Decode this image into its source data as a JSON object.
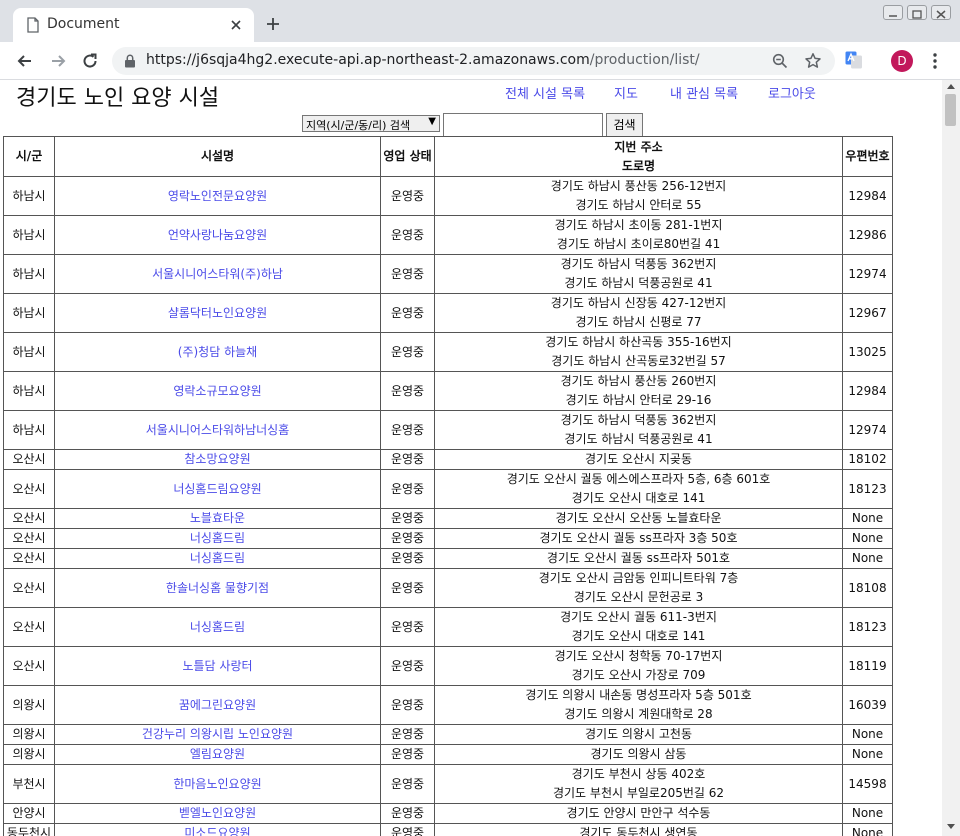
{
  "browser": {
    "tab_title": "Document",
    "url_main": "https://j6sqja4hg2.execute-api.ap-northeast-2.amazonaws.com",
    "url_path": "/production/list/",
    "profile_initial": "D",
    "profile_color": "#c2185b"
  },
  "page": {
    "title": "경기도 노인 요양 시설",
    "nav": [
      "전체 시설 목록",
      "지도",
      "내 관심 목록",
      "로그아웃"
    ],
    "search": {
      "select_value": "지역(시/군/동/리) 검색",
      "button_label": "검색",
      "input_value": ""
    },
    "link_color": "#4a4ae8"
  },
  "table": {
    "headers": [
      "시/군",
      "시설명",
      "영업 상태",
      "지번 주소",
      "도로명",
      "우편번호"
    ],
    "rows": [
      {
        "city": "하남시",
        "name": "영락노인전문요양원",
        "status": "운영중",
        "addr1": "경기도 하남시 풍산동 256-12번지",
        "addr2": "경기도 하남시 안터로 55",
        "zip": "12984"
      },
      {
        "city": "하남시",
        "name": "언약사랑나눔요양원",
        "status": "운영중",
        "addr1": "경기도 하남시 초이동 281-1번지",
        "addr2": "경기도 하남시 초이로80번길 41",
        "zip": "12986"
      },
      {
        "city": "하남시",
        "name": "서울시니어스타워(주)하남",
        "status": "운영중",
        "addr1": "경기도 하남시 덕풍동 362번지",
        "addr2": "경기도 하남시 덕풍공원로 41",
        "zip": "12974"
      },
      {
        "city": "하남시",
        "name": "샬롬닥터노인요양원",
        "status": "운영중",
        "addr1": "경기도 하남시 신장동 427-12번지",
        "addr2": "경기도 하남시 신평로 77",
        "zip": "12967"
      },
      {
        "city": "하남시",
        "name": "(주)청담 하늘채",
        "status": "운영중",
        "addr1": "경기도 하남시 하산곡동 355-16번지",
        "addr2": "경기도 하남시 산곡동로32번길 57",
        "zip": "13025"
      },
      {
        "city": "하남시",
        "name": "영락소규모요양원",
        "status": "운영중",
        "addr1": "경기도 하남시 풍산동 260번지",
        "addr2": "경기도 하남시 안터로 29-16",
        "zip": "12984"
      },
      {
        "city": "하남시",
        "name": "서울시니어스타워하남너싱홈",
        "status": "운영중",
        "addr1": "경기도 하남시 덕풍동 362번지",
        "addr2": "경기도 하남시 덕풍공원로 41",
        "zip": "12974"
      },
      {
        "city": "오산시",
        "name": "참소망요양원",
        "status": "운영중",
        "addr1": "경기도 오산시 지곶동",
        "addr2": "",
        "zip": "18102"
      },
      {
        "city": "오산시",
        "name": "너싱홈드림요양원",
        "status": "운영중",
        "addr1": "경기도 오산시 궐동 에스에스프라자 5층, 6층 601호",
        "addr2": "경기도 오산시 대호로 141",
        "zip": "18123"
      },
      {
        "city": "오산시",
        "name": "노블효타운",
        "status": "운영중",
        "addr1": "경기도 오산시 오산동 노블효타운",
        "addr2": "",
        "zip": "None"
      },
      {
        "city": "오산시",
        "name": "너싱홈드림",
        "status": "운영중",
        "addr1": "경기도 오산시 궐동 ss프라자 3층 50호",
        "addr2": "",
        "zip": "None"
      },
      {
        "city": "오산시",
        "name": "너싱홈드림",
        "status": "운영중",
        "addr1": "경기도 오산시 궐동 ss프라자 501호",
        "addr2": "",
        "zip": "None"
      },
      {
        "city": "오산시",
        "name": "한솔너싱홈 물향기점",
        "status": "운영중",
        "addr1": "경기도 오산시 금암동 인피니트타워 7층",
        "addr2": "경기도 오산시 문헌공로 3",
        "zip": "18108"
      },
      {
        "city": "오산시",
        "name": "너싱홈드림",
        "status": "운영중",
        "addr1": "경기도 오산시 궐동 611-3번지",
        "addr2": "경기도 오산시 대호로 141",
        "zip": "18123"
      },
      {
        "city": "오산시",
        "name": "노틀담 사랑터",
        "status": "운영중",
        "addr1": "경기도 오산시 청학동 70-17번지",
        "addr2": "경기도 오산시 가장로 709",
        "zip": "18119"
      },
      {
        "city": "의왕시",
        "name": "꿈에그린요양원",
        "status": "운영중",
        "addr1": "경기도 의왕시 내손동 명성프라자 5층 501호",
        "addr2": "경기도 의왕시 계원대학로 28",
        "zip": "16039"
      },
      {
        "city": "의왕시",
        "name": "건강누리 의왕시립 노인요양원",
        "status": "운영중",
        "addr1": "경기도 의왕시 고천동",
        "addr2": "",
        "zip": "None"
      },
      {
        "city": "의왕시",
        "name": "엘림요양원",
        "status": "운영중",
        "addr1": "경기도 의왕시 삼동",
        "addr2": "",
        "zip": "None"
      },
      {
        "city": "부천시",
        "name": "한마음노인요양원",
        "status": "운영중",
        "addr1": "경기도 부천시 상동 402호",
        "addr2": "경기도 부천시 부일로205번길 62",
        "zip": "14598"
      },
      {
        "city": "안양시",
        "name": "벧엘노인요양원",
        "status": "운영중",
        "addr1": "경기도 안양시 만안구 석수동",
        "addr2": "",
        "zip": "None"
      },
      {
        "city": "동두천시",
        "name": "미소드요양원",
        "status": "운영중",
        "addr1": "경기도 동두천시 생연동",
        "addr2": "",
        "zip": "None"
      }
    ]
  }
}
